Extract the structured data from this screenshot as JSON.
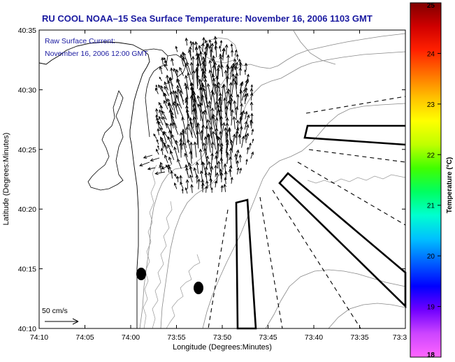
{
  "chart_data": {
    "type": "map",
    "title": "RU COOL  NOAA–15  Sea Surface Temperature:  November 16, 2006 1103 GMT",
    "annotation": [
      "Raw Surface Current:",
      "November 16, 2006 12:00 GMT"
    ],
    "scale_label": "50 cm/s",
    "xlabel": "Longitude (Degrees:Minutes)",
    "ylabel": "Latitude (Degrees:Minutes)",
    "x_ticks": [
      "74:10",
      "74:05",
      "74:00",
      "73:55",
      "73:50",
      "73:45",
      "73:40",
      "73:35",
      "73:3"
    ],
    "y_ticks": [
      "40:35",
      "40:30",
      "40:25",
      "40:20",
      "40:15",
      "40:10"
    ],
    "xlim": [
      "74:10",
      "73:30"
    ],
    "ylim": [
      "40:10",
      "40:35"
    ],
    "colorbar": {
      "label": "Temperature (°C)",
      "ticks": [
        "25",
        "24",
        "23",
        "22",
        "21",
        "20",
        "19",
        "18"
      ],
      "range": [
        18,
        25
      ],
      "colors": [
        "#ff66ff",
        "#cc44ff",
        "#7000ff",
        "#0000ff",
        "#0060ff",
        "#00c0ff",
        "#00ffd0",
        "#00ff60",
        "#40ff00",
        "#c0ff00",
        "#ffff00",
        "#ffc000",
        "#ff7000",
        "#ff2000",
        "#d00000",
        "#800000"
      ]
    },
    "grid": false
  }
}
